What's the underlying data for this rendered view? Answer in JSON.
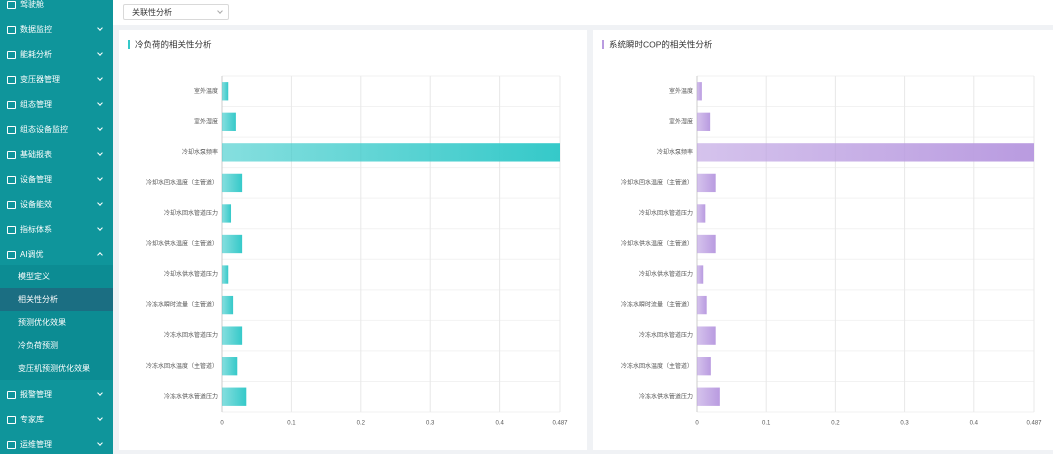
{
  "sidebar": {
    "items": [
      {
        "label": "驾驶舱"
      },
      {
        "label": "数据监控"
      },
      {
        "label": "能耗分析"
      },
      {
        "label": "变压器管理"
      },
      {
        "label": "组态管理"
      },
      {
        "label": "组态设备监控"
      },
      {
        "label": "基础报表"
      },
      {
        "label": "设备管理"
      },
      {
        "label": "设备能效"
      },
      {
        "label": "指标体系"
      },
      {
        "label": "AI调优",
        "children": [
          "模型定义",
          "相关性分析",
          "预测优化效果",
          "冷负荷预测",
          "变压机预测优化效果"
        ],
        "active_child": 1
      },
      {
        "label": "报警管理"
      },
      {
        "label": "专家库"
      },
      {
        "label": "运维管理"
      }
    ]
  },
  "toolbar": {
    "dropdown": "关联性分析"
  },
  "chart_data": [
    {
      "type": "hbar",
      "title": "冷负荷的相关性分析",
      "categories": [
        "室外温度",
        "室外湿度",
        "冷却水泵频率",
        "冷却水回水温度（主管道）",
        "冷却水回水管道压力",
        "冷却水供水温度（主管道）",
        "冷却水供水管道压力",
        "冷冻水瞬时流量（主管道）",
        "冷冻水回水管道压力",
        "冷冻水回水温度（主管道）",
        "冷冻水供水管道压力"
      ],
      "values": [
        0.009,
        0.02,
        0.487,
        0.029,
        0.013,
        0.029,
        0.009,
        0.016,
        0.029,
        0.022,
        0.035
      ],
      "color": "#35c9c9",
      "xlim": [
        0,
        0.487
      ],
      "xticks": [
        0,
        0.1,
        0.2,
        0.3,
        0.4,
        0.487
      ],
      "grid": true
    },
    {
      "type": "hbar",
      "title": "系统瞬时COP的相关性分析",
      "categories": [
        "室外温度",
        "室外湿度",
        "冷却水泵频率",
        "冷却水回水温度（主管道）",
        "冷却水回水管道压力",
        "冷却水供水温度（主管道）",
        "冷却水供水管道压力",
        "冷冻水瞬时流量（主管道）",
        "冷冻水回水管道压力",
        "冷冻水回水温度（主管道）",
        "冷冻水供水管道压力"
      ],
      "values": [
        0.007,
        0.019,
        0.487,
        0.027,
        0.012,
        0.027,
        0.009,
        0.014,
        0.027,
        0.02,
        0.033
      ],
      "color": "#b99be0",
      "xlim": [
        0,
        0.487
      ],
      "xticks": [
        0,
        0.1,
        0.2,
        0.3,
        0.4,
        0.487
      ],
      "grid": true
    }
  ]
}
